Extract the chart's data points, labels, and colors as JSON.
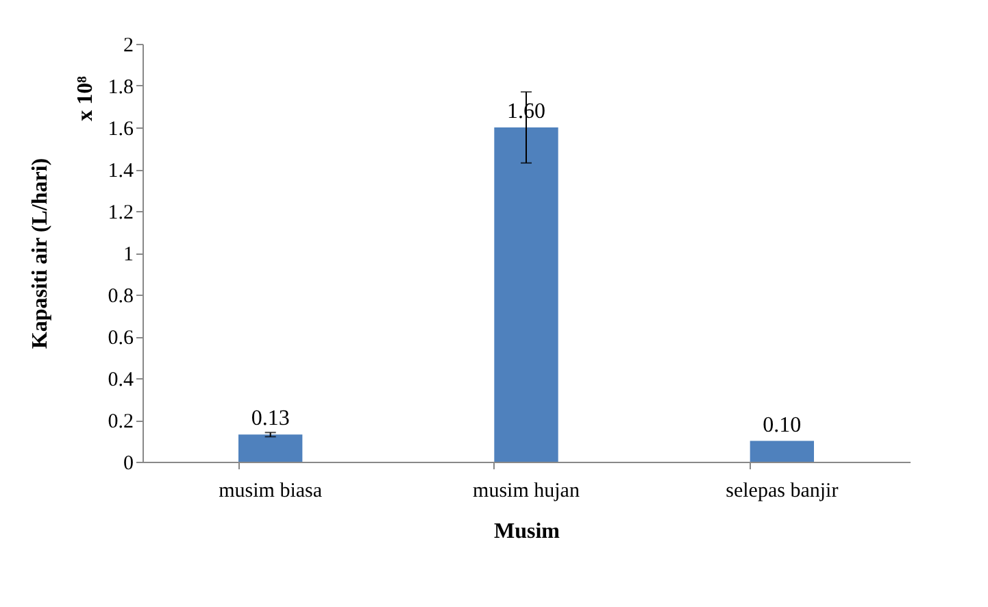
{
  "chart_data": {
    "type": "bar",
    "xlabel": "Musim",
    "ylabel": "Kapasiti air (L/hari)",
    "categories": [
      "musim biasa",
      "musim hujan",
      "selepas banjir"
    ],
    "values": [
      0.13,
      1.6,
      0.1
    ],
    "errors": [
      0.01,
      0.17,
      null
    ],
    "value_labels": [
      "0.13",
      "1.60",
      "0.10"
    ],
    "color": "#4f81bd",
    "ylim": [
      0,
      2
    ],
    "yticks": [
      0,
      0.2,
      0.4,
      0.6,
      0.8,
      1,
      1.2,
      1.4,
      1.6,
      1.8,
      2
    ],
    "grid": false,
    "annotations": [
      "x 10⁸"
    ]
  }
}
